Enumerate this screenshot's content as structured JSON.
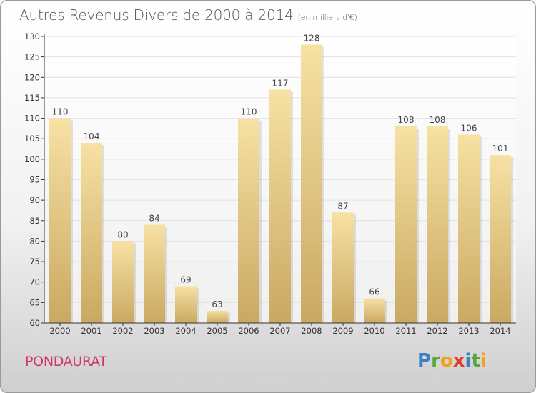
{
  "title": "Autres Revenus Divers de 2000 à 2014",
  "subtitle": "(en milliers d'€)",
  "place": "PONDAURAT",
  "logo": [
    "P",
    "r",
    "o",
    "x",
    "i",
    "t",
    "i"
  ],
  "colors": {
    "bar_light": "#f7e1a3",
    "bar_dark": "#c9a962",
    "axis": "#333333",
    "grid": "#e2e2e2",
    "place": "#d2356a"
  },
  "chart_data": {
    "type": "bar",
    "categories": [
      "2000",
      "2001",
      "2002",
      "2003",
      "2004",
      "2005",
      "2006",
      "2007",
      "2008",
      "2009",
      "2010",
      "2011",
      "2012",
      "2013",
      "2014"
    ],
    "values": [
      110,
      104,
      80,
      84,
      69,
      63,
      110,
      117,
      128,
      87,
      66,
      108,
      108,
      106,
      101
    ],
    "title": "Autres Revenus Divers de 2000 à 2014",
    "xlabel": "",
    "ylabel": "",
    "ylim": [
      60,
      130
    ],
    "yticks": [
      60,
      65,
      70,
      75,
      80,
      85,
      90,
      95,
      100,
      105,
      110,
      115,
      120,
      125,
      130
    ],
    "grid": true,
    "data_labels": true
  }
}
